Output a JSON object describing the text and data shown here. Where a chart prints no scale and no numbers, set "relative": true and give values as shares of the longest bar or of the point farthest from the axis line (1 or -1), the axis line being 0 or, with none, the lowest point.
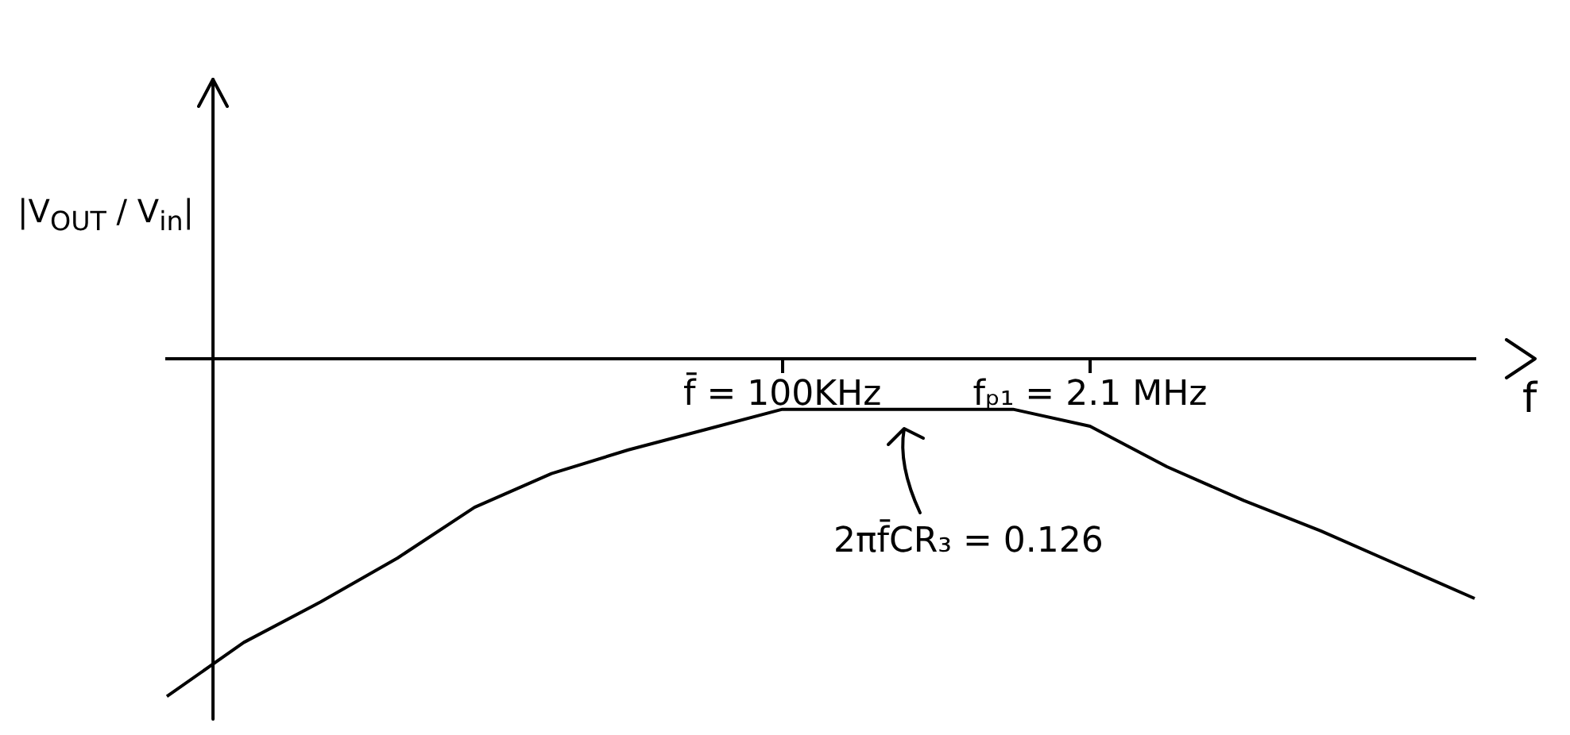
{
  "chart_data": {
    "type": "line",
    "relative": true,
    "ylabel": "|V$_{OUT}$ / V$_{in}$|",
    "xlabel": "f",
    "categories": [
      null,
      null,
      null,
      null,
      null,
      null,
      null,
      null,
      "f̄ = 100KHz",
      null,
      null,
      null,
      "fₚ₁ = 2.1 MHz",
      null,
      null,
      null,
      null,
      null
    ],
    "values": [
      -1,
      -0.84,
      -0.72,
      -0.59,
      -0.44,
      -0.34,
      -0.27,
      -0.21,
      -0.15,
      -0.15,
      -0.15,
      -0.15,
      -0.2,
      -0.32,
      -0.42,
      -0.51,
      -0.61,
      -0.71
    ],
    "color": "#000000",
    "marker": "none",
    "legend": false,
    "tick_labels": "x",
    "annotations": [
      "2πf̄CR₃ = 0.126"
    ]
  }
}
